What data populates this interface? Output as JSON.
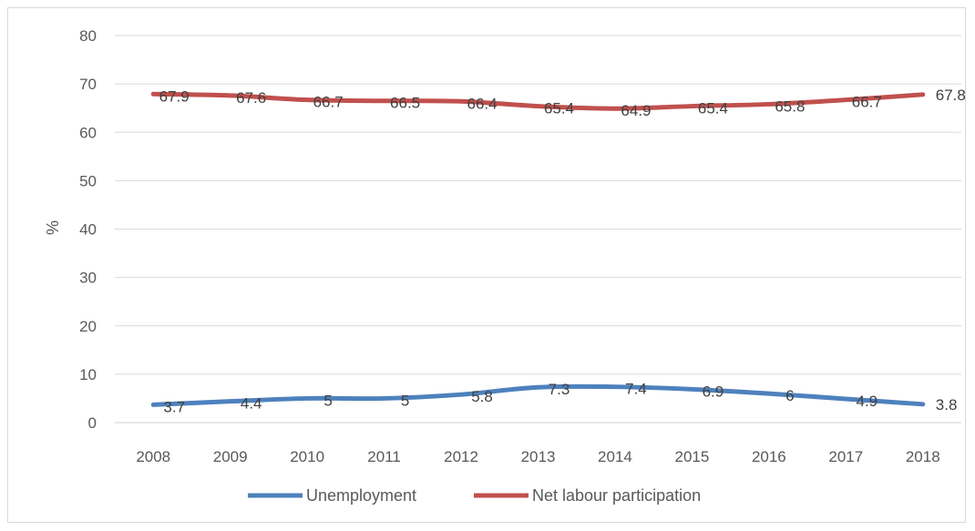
{
  "chart_data": {
    "type": "line",
    "x": [
      "2008",
      "2009",
      "2010",
      "2011",
      "2012",
      "2013",
      "2014",
      "2015",
      "2016",
      "2017",
      "2018"
    ],
    "series": [
      {
        "name": "Unemployment",
        "color": "#4e81bd",
        "values": [
          3.7,
          4.4,
          5,
          5,
          5.8,
          7.3,
          7.4,
          6.9,
          6,
          4.9,
          3.8
        ],
        "labels": [
          "3.7",
          "4.4",
          "5",
          "5",
          "5.8",
          "7.3",
          "7.4",
          "6.9",
          "6",
          "4.9",
          "3.8"
        ]
      },
      {
        "name": "Net labour participation",
        "color": "#c0504d",
        "values": [
          67.9,
          67.6,
          66.7,
          66.5,
          66.4,
          65.4,
          64.9,
          65.4,
          65.8,
          66.7,
          67.8
        ],
        "labels": [
          "67.9",
          "67.6",
          "66.7",
          "66.5",
          "66.4",
          "65.4",
          "64.9",
          "65.4",
          "65.8",
          "66.7",
          "67.8"
        ]
      }
    ],
    "ylabel": "%",
    "ylim": [
      0,
      80
    ],
    "yticks": [
      "0",
      "10",
      "20",
      "30",
      "40",
      "50",
      "60",
      "70",
      "80"
    ],
    "grid": true,
    "legend": "bottom"
  }
}
